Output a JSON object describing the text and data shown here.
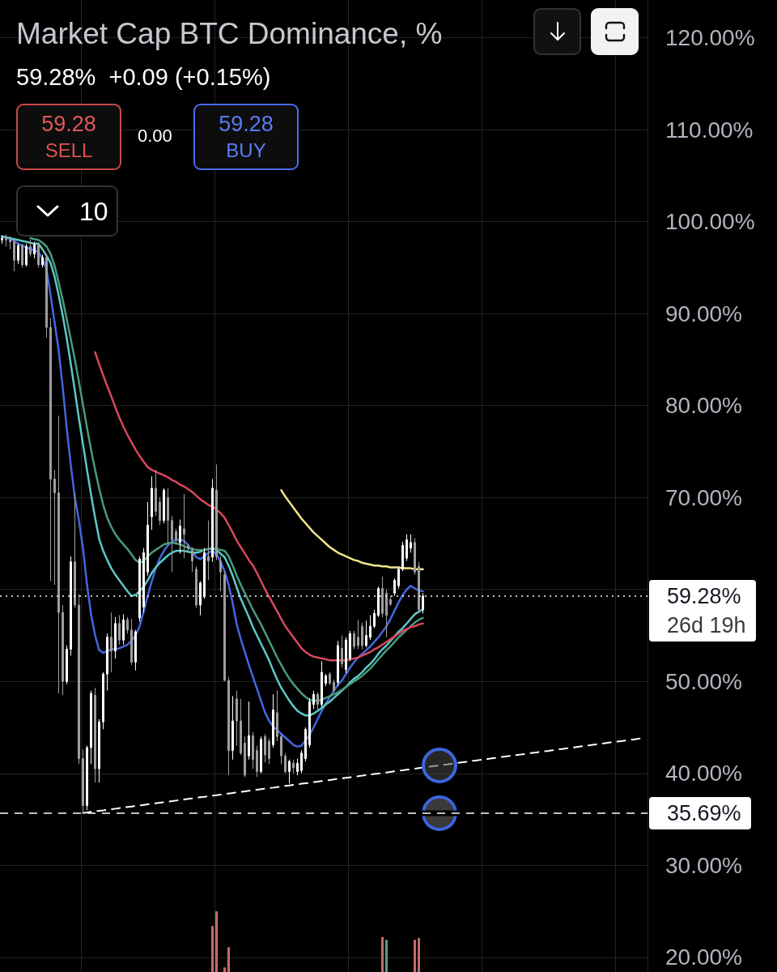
{
  "chart_data": {
    "type": "candlestick",
    "title": "Market Cap BTC Dominance, %",
    "subtitle": "59.28%  +0.09 (+0.15%)",
    "annotations": [
      "59.28",
      "SELL",
      "0.00",
      "59.28",
      "BUY",
      "10",
      "26d 19h"
    ],
    "categories": [
      null,
      null,
      null,
      null,
      null,
      null,
      null,
      null,
      null,
      null,
      null,
      null,
      null,
      null,
      null,
      null,
      null,
      null,
      null,
      null,
      null,
      null,
      null,
      null,
      null,
      null,
      null,
      null,
      null,
      null,
      null,
      null,
      null,
      null,
      null,
      null,
      null,
      null,
      null,
      null,
      null,
      null,
      null,
      null,
      null,
      null,
      null,
      null,
      null,
      null,
      null,
      null,
      null,
      null,
      null,
      null,
      null,
      null,
      null,
      null,
      null,
      null,
      null,
      null,
      null,
      null,
      null,
      null,
      null,
      null,
      null,
      null,
      null,
      null,
      null,
      null,
      null,
      null,
      null,
      null,
      null,
      null,
      null,
      null,
      null,
      null,
      null,
      null,
      null,
      null,
      null,
      null,
      null,
      null,
      null,
      null,
      null,
      null,
      null,
      null,
      null,
      null,
      null,
      null,
      null,
      null,
      null,
      null,
      null,
      null,
      null,
      null,
      null,
      null,
      null,
      null,
      null,
      null,
      null,
      null,
      null,
      null,
      null,
      null,
      null,
      null,
      null,
      null,
      null,
      null,
      null,
      null,
      null,
      null,
      null,
      null,
      null,
      null,
      null,
      null,
      null,
      null,
      null,
      null,
      null,
      null,
      null,
      null,
      null,
      null,
      null,
      null,
      null,
      null,
      null,
      null,
      null,
      null,
      null,
      null
    ],
    "ohlc": [
      [
        98.0,
        98.5,
        97.6,
        98.2
      ],
      [
        98.2,
        98.6,
        97.3,
        98.0
      ],
      [
        98.0,
        98.4,
        97.0,
        97.8
      ],
      [
        97.8,
        98.0,
        94.6,
        95.8
      ],
      [
        95.8,
        97.6,
        95.4,
        97.4
      ],
      [
        97.4,
        97.6,
        95.0,
        95.3
      ],
      [
        95.3,
        97.6,
        95.1,
        97.3
      ],
      [
        97.3,
        98.0,
        96.2,
        96.5
      ],
      [
        96.5,
        97.8,
        96.0,
        97.5
      ],
      [
        97.5,
        97.7,
        95.0,
        95.3
      ],
      [
        95.3,
        96.4,
        95.0,
        96.1
      ],
      [
        96.1,
        96.5,
        87.4,
        88.5
      ],
      [
        88.5,
        89.5,
        60.9,
        72.0
      ],
      [
        72.0,
        73.0,
        60.5,
        70.5
      ],
      [
        70.5,
        78.9,
        48.7,
        57.5
      ],
      [
        57.5,
        58.3,
        48.5,
        50.0
      ],
      [
        50.0,
        53.9,
        49.7,
        53.5
      ],
      [
        53.5,
        63.6,
        52.8,
        63.0
      ],
      [
        63.0,
        70.5,
        58.0,
        58.3
      ],
      [
        58.3,
        59.5,
        41.0,
        41.6
      ],
      [
        41.6,
        42.6,
        35.69,
        36.5
      ],
      [
        36.5,
        43.0,
        36.0,
        42.8
      ],
      [
        42.8,
        49.0,
        41.0,
        48.7
      ],
      [
        48.5,
        49.3,
        39.0,
        40.5
      ],
      [
        40.5,
        45.9,
        39.0,
        45.6
      ],
      [
        45.6,
        51.0,
        44.8,
        50.8
      ],
      [
        50.8,
        55.2,
        49.0,
        54.8
      ],
      [
        54.8,
        57.5,
        51.0,
        53.3
      ],
      [
        53.3,
        57.0,
        52.5,
        56.3
      ],
      [
        56.3,
        57.2,
        54.0,
        54.5
      ],
      [
        54.5,
        57.3,
        54.0,
        56.7
      ],
      [
        56.7,
        57.0,
        55.2,
        55.6
      ],
      [
        55.6,
        56.8,
        51.8,
        52.1
      ],
      [
        52.1,
        55.6,
        51.2,
        55.4
      ],
      [
        56.9,
        63.6,
        56.5,
        63.3
      ],
      [
        58.1,
        64.5,
        57.5,
        64.0
      ],
      [
        61.9,
        69.5,
        61.5,
        67.0
      ],
      [
        67.9,
        72.3,
        66.5,
        71.0
      ],
      [
        71.0,
        73.0,
        68.0,
        68.5
      ],
      [
        69.5,
        70.0,
        67.0,
        67.5
      ],
      [
        67.5,
        71.0,
        67.2,
        70.8
      ],
      [
        70.0,
        71.0,
        65.0,
        67.5
      ],
      [
        67.5,
        68.0,
        61.9,
        65.4
      ],
      [
        66.3,
        66.6,
        65.0,
        65.4
      ],
      [
        65.1,
        67.6,
        63.9,
        66.9
      ],
      [
        66.6,
        70.4,
        63.4,
        66.0
      ],
      [
        64.7,
        65.0,
        64.2,
        64.5
      ],
      [
        64.2,
        64.6,
        61.9,
        63.1
      ],
      [
        62.2,
        62.5,
        58.0,
        58.3
      ],
      [
        58.3,
        60.9,
        57.2,
        60.7
      ],
      [
        59.2,
        64.5,
        59.0,
        64.0
      ],
      [
        63.6,
        67.5,
        61.0,
        63.1
      ],
      [
        63.5,
        72.0,
        63.0,
        71.0
      ],
      [
        70.8,
        73.6,
        63.2,
        63.6
      ],
      [
        63.1,
        63.6,
        59.8,
        61.9
      ],
      [
        61.6,
        62.0,
        50.0,
        50.1
      ],
      [
        50.1,
        50.5,
        39.8,
        42.5
      ],
      [
        42.5,
        48.4,
        41.5,
        45.7
      ],
      [
        48.1,
        49.0,
        43.0,
        45.7
      ],
      [
        45.7,
        48.1,
        42.0,
        42.2
      ],
      [
        43.3,
        44.0,
        39.6,
        39.8
      ],
      [
        41.9,
        47.8,
        41.5,
        44.1
      ],
      [
        44.1,
        44.5,
        40.5,
        41.5
      ],
      [
        42.5,
        43.0,
        39.6,
        40.2
      ],
      [
        40.2,
        44.0,
        40.0,
        43.7
      ],
      [
        44.0,
        44.3,
        41.2,
        42.0
      ],
      [
        43.5,
        43.8,
        41.0,
        41.6
      ],
      [
        43.1,
        48.6,
        42.8,
        46.9
      ],
      [
        46.6,
        49.0,
        43.5,
        44.0
      ],
      [
        44.0,
        44.3,
        41.0,
        41.9
      ],
      [
        41.9,
        42.2,
        40.0,
        40.2
      ],
      [
        40.2,
        41.5,
        38.9,
        41.3
      ],
      [
        41.1,
        41.5,
        40.0,
        40.6
      ],
      [
        40.2,
        41.6,
        39.8,
        41.1
      ],
      [
        40.3,
        42.5,
        40.0,
        42.2
      ],
      [
        41.6,
        45.0,
        41.3,
        44.8
      ],
      [
        43.1,
        48.2,
        42.8,
        47.8
      ],
      [
        47.5,
        49.0,
        47.0,
        48.6
      ],
      [
        48.6,
        48.8,
        46.8,
        47.5
      ],
      [
        47.5,
        52.2,
        47.2,
        51.0
      ],
      [
        49.8,
        50.8,
        49.5,
        50.6
      ],
      [
        50.8,
        51.0,
        49.6,
        49.8
      ],
      [
        49.9,
        50.2,
        48.8,
        49.0
      ],
      [
        49.9,
        54.4,
        49.5,
        53.9
      ],
      [
        53.6,
        55.0,
        51.5,
        51.9
      ],
      [
        51.3,
        54.8,
        50.9,
        54.5
      ],
      [
        52.5,
        55.5,
        52.2,
        55.2
      ],
      [
        55.2,
        55.5,
        53.5,
        53.8
      ],
      [
        54.8,
        56.7,
        53.5,
        53.9
      ],
      [
        56.0,
        56.4,
        53.5,
        53.9
      ],
      [
        53.9,
        56.6,
        53.7,
        55.0
      ],
      [
        54.8,
        57.2,
        54.5,
        56.0
      ],
      [
        56.0,
        57.8,
        55.8,
        57.4
      ],
      [
        57.2,
        60.3,
        57.0,
        60.1
      ],
      [
        60.1,
        61.4,
        57.0,
        57.4
      ],
      [
        59.6,
        60.0,
        54.8,
        57.2
      ],
      [
        58.9,
        59.3,
        58.2,
        58.4
      ],
      [
        59.6,
        61.2,
        59.3,
        61.0
      ],
      [
        60.4,
        62.5,
        60.1,
        62.2
      ],
      [
        62.2,
        65.2,
        62.0,
        64.8
      ],
      [
        63.4,
        66.0,
        63.1,
        65.4
      ],
      [
        64.5,
        66.0,
        64.0,
        65.1
      ],
      [
        65.1,
        65.6,
        61.6,
        61.9
      ],
      [
        62.5,
        63.0,
        57.4,
        57.8
      ],
      [
        57.8,
        59.6,
        57.4,
        59.28
      ],
      null,
      null,
      null,
      null,
      null,
      null,
      null,
      null,
      null,
      null,
      null,
      null,
      null,
      null,
      null,
      null,
      null,
      null,
      null,
      null,
      null,
      null,
      null,
      null,
      null,
      null,
      null,
      null,
      null,
      null,
      null,
      null,
      null,
      null,
      null,
      null,
      null,
      null,
      null,
      null,
      null,
      null,
      null,
      null,
      null,
      null,
      null,
      null,
      null,
      null,
      null,
      null,
      null,
      null,
      null
    ],
    "colors": [
      "#ffffff",
      "#9e9e9e",
      "#9e9e9e",
      "#9e9e9e",
      "#ffffff",
      "#9e9e9e",
      "#ffffff",
      "#9e9e9e",
      "#ffffff",
      "#9e9e9e",
      "#ffffff",
      "#9e9e9e",
      "#9e9e9e",
      "#9e9e9e",
      "#9e9e9e",
      "#9e9e9e",
      "#ffffff",
      "#ffffff",
      "#9e9e9e",
      "#9e9e9e",
      "#9e9e9e",
      "#ffffff",
      "#ffffff",
      "#9e9e9e",
      "#ffffff",
      "#ffffff",
      "#ffffff",
      "#9e9e9e",
      "#ffffff",
      "#9e9e9e",
      "#ffffff",
      "#9e9e9e",
      "#9e9e9e",
      "#ffffff",
      "#ffffff",
      "#ffffff",
      "#ffffff",
      "#ffffff",
      "#9e9e9e",
      "#9e9e9e",
      "#ffffff",
      "#9e9e9e",
      "#9e9e9e",
      "#9e9e9e",
      "#ffffff",
      "#9e9e9e",
      "#9e9e9e",
      "#9e9e9e",
      "#9e9e9e",
      "#ffffff",
      "#ffffff",
      "#9e9e9e",
      "#ffffff",
      "#9e9e9e",
      "#9e9e9e",
      "#9e9e9e",
      "#9e9e9e",
      "#ffffff",
      "#9e9e9e",
      "#9e9e9e",
      "#9e9e9e",
      "#ffffff",
      "#9e9e9e",
      "#9e9e9e",
      "#ffffff",
      "#9e9e9e",
      "#9e9e9e",
      "#ffffff",
      "#9e9e9e",
      "#9e9e9e",
      "#9e9e9e",
      "#ffffff",
      "#9e9e9e",
      "#ffffff",
      "#ffffff",
      "#ffffff",
      "#ffffff",
      "#ffffff",
      "#9e9e9e",
      "#ffffff",
      "#ffffff",
      "#9e9e9e",
      "#9e9e9e",
      "#ffffff",
      "#9e9e9e",
      "#ffffff",
      "#ffffff",
      "#9e9e9e",
      "#9e9e9e",
      "#9e9e9e",
      "#ffffff",
      "#ffffff",
      "#ffffff",
      "#ffffff",
      "#9e9e9e",
      "#9e9e9e",
      "#9e9e9e",
      "#ffffff",
      "#ffffff",
      "#ffffff",
      "#ffffff",
      "#ffffff",
      "#9e9e9e",
      "#9e9e9e",
      "#ffffff",
      null,
      null,
      null,
      null,
      null,
      null,
      null,
      null,
      null,
      null,
      null,
      null,
      null,
      null,
      null,
      null,
      null,
      null,
      null,
      null,
      null,
      null,
      null,
      null,
      null,
      null,
      null,
      null,
      null,
      null,
      null,
      null,
      null,
      null,
      null,
      null,
      null,
      null,
      null,
      null,
      null,
      null,
      null,
      null,
      null,
      null,
      null,
      null,
      null,
      null,
      null,
      null,
      null,
      null,
      null
    ],
    "series": [
      {
        "type": "line",
        "color": "#4466e0",
        "values": [
          98.4,
          98.3,
          98.1,
          97.9,
          97.6,
          97.4,
          97.2,
          97.0,
          96.9,
          96.7,
          96.0,
          94.8,
          92.0,
          89.0,
          86.0,
          82.0,
          77.5,
          73.5,
          70.0,
          67.5,
          64.5,
          60.5,
          57.3,
          55.0,
          53.4,
          53.1,
          53.3,
          53.5,
          53.5,
          53.6,
          53.8,
          54.0,
          54.4,
          55.0,
          56.0,
          57.6,
          59.3,
          60.9,
          62.3,
          63.4,
          64.2,
          64.8,
          65.2,
          65.4,
          65.4,
          65.3,
          64.8,
          64.2,
          63.5,
          63.3,
          63.6,
          64.0,
          64.2,
          63.8,
          63.0,
          62.0,
          60.5,
          58.5,
          56.2,
          54.6,
          53.2,
          51.8,
          50.5,
          49.2,
          47.9,
          46.6,
          45.7,
          45.1,
          44.7,
          44.3,
          43.9,
          43.5,
          43.1,
          42.9,
          43.0,
          43.6,
          44.2,
          45.0,
          45.9,
          46.8,
          47.6,
          48.3,
          49.0,
          49.6,
          50.1,
          50.8,
          51.5,
          52.1,
          52.6,
          53.0,
          53.4,
          53.8,
          54.3,
          54.8,
          55.4,
          56.0,
          56.8,
          57.7,
          58.6,
          59.4,
          60.0,
          60.4,
          60.1,
          59.9,
          59.8,
          null,
          null,
          null,
          null,
          null,
          null,
          null,
          null,
          null,
          null,
          null,
          null,
          null,
          null,
          null,
          null,
          null,
          null,
          null,
          null,
          null,
          null,
          null,
          null,
          null,
          null,
          null,
          null,
          null,
          null,
          null,
          null,
          null,
          null,
          null,
          null,
          null,
          null,
          null,
          null,
          null,
          null,
          null,
          null,
          null,
          null,
          null,
          null,
          null,
          null,
          null,
          null,
          null,
          null,
          null
        ]
      },
      {
        "type": "line",
        "color": "#5cc8c8",
        "values": [
          98.4,
          98.3,
          98.2,
          98.1,
          98.0,
          97.9,
          97.8,
          97.7,
          97.6,
          97.6,
          97.0,
          96.3,
          95.5,
          94.0,
          92.0,
          89.8,
          87.3,
          84.5,
          81.6,
          78.6,
          75.8,
          73.0,
          70.3,
          67.8,
          65.5,
          64.2,
          63.2,
          62.3,
          61.6,
          61.0,
          60.4,
          59.8,
          59.3,
          59.4,
          59.8,
          60.3,
          61.0,
          61.8,
          62.4,
          62.9,
          63.3,
          63.7,
          64.0,
          64.2,
          64.2,
          64.2,
          64.1,
          64.0,
          64.0,
          64.1,
          64.3,
          64.4,
          64.5,
          64.3,
          63.9,
          63.5,
          62.6,
          61.5,
          60.2,
          59.0,
          58.0,
          57.0,
          55.9,
          55.0,
          54.1,
          53.2,
          52.3,
          51.2,
          50.2,
          49.3,
          48.6,
          47.9,
          47.3,
          46.8,
          46.5,
          46.3,
          46.3,
          46.5,
          46.8,
          47.1,
          47.5,
          47.8,
          48.2,
          48.6,
          49.0,
          49.4,
          49.9,
          50.3,
          50.6,
          51.0,
          51.5,
          51.9,
          52.4,
          53.0,
          53.5,
          53.9,
          54.4,
          54.9,
          55.4,
          55.8,
          56.3,
          56.8,
          57.3,
          57.6,
          57.8,
          null,
          null,
          null,
          null,
          null,
          null,
          null,
          null,
          null,
          null,
          null,
          null,
          null,
          null,
          null,
          null,
          null,
          null,
          null,
          null,
          null,
          null,
          null,
          null,
          null,
          null,
          null,
          null,
          null,
          null,
          null,
          null,
          null,
          null,
          null,
          null,
          null,
          null,
          null,
          null,
          null,
          null,
          null,
          null,
          null,
          null,
          null,
          null,
          null,
          null,
          null,
          null,
          null,
          null,
          null
        ]
      },
      {
        "type": "line",
        "color": "#4a9a7c",
        "values": [
          null,
          null,
          null,
          null,
          null,
          null,
          null,
          98.2,
          98.1,
          98.0,
          97.7,
          97.3,
          96.5,
          95.2,
          93.4,
          91.5,
          89.4,
          87.2,
          85.0,
          82.6,
          80.1,
          77.6,
          75.2,
          73.0,
          71.0,
          69.2,
          67.8,
          66.8,
          66.0,
          65.4,
          64.9,
          64.4,
          63.8,
          63.2,
          62.9,
          63.1,
          63.6,
          64.0,
          64.3,
          64.6,
          64.9,
          65.0,
          65.1,
          65.0,
          64.9,
          64.7,
          64.5,
          64.4,
          64.3,
          64.3,
          64.3,
          64.4,
          64.4,
          64.4,
          64.3,
          64.2,
          63.6,
          62.6,
          61.5,
          60.5,
          59.6,
          58.7,
          57.8,
          57.0,
          56.2,
          55.3,
          54.4,
          53.5,
          52.6,
          51.8,
          51.0,
          50.3,
          49.7,
          49.2,
          48.7,
          48.3,
          48.0,
          47.9,
          47.9,
          48.0,
          48.2,
          48.4,
          48.6,
          48.8,
          49.1,
          49.4,
          49.7,
          50.0,
          50.3,
          50.6,
          51.0,
          51.4,
          51.9,
          52.4,
          52.9,
          53.4,
          53.8,
          54.3,
          54.8,
          55.2,
          55.6,
          56.0,
          56.4,
          56.7,
          56.9,
          null,
          null,
          null,
          null,
          null,
          null,
          null,
          null,
          null,
          null,
          null,
          null,
          null,
          null,
          null,
          null,
          null,
          null,
          null,
          null,
          null,
          null,
          null,
          null,
          null,
          null,
          null,
          null,
          null,
          null,
          null,
          null,
          null,
          null,
          null,
          null,
          null,
          null,
          null,
          null,
          null,
          null,
          null,
          null,
          null,
          null,
          null,
          null,
          null,
          null,
          null,
          null,
          null,
          null,
          null
        ]
      },
      {
        "type": "line",
        "color": "#d9475c",
        "values": [
          null,
          null,
          null,
          null,
          null,
          null,
          null,
          null,
          null,
          null,
          null,
          null,
          null,
          null,
          null,
          null,
          null,
          null,
          null,
          null,
          null,
          null,
          null,
          85.8,
          84.5,
          83.3,
          82.1,
          81.0,
          79.8,
          78.7,
          77.7,
          76.8,
          76.0,
          75.2,
          74.5,
          73.9,
          73.3,
          73.0,
          72.8,
          72.6,
          72.4,
          72.2,
          71.9,
          71.7,
          71.4,
          71.2,
          70.9,
          70.6,
          70.2,
          69.8,
          69.5,
          69.2,
          69.0,
          68.7,
          68.3,
          67.8,
          67.0,
          66.2,
          65.3,
          64.6,
          63.9,
          63.2,
          62.6,
          61.8,
          60.9,
          60.0,
          59.2,
          58.4,
          57.6,
          56.8,
          56.0,
          55.4,
          54.8,
          54.2,
          53.6,
          53.2,
          52.9,
          52.7,
          52.6,
          52.5,
          52.4,
          52.3,
          52.3,
          52.3,
          52.3,
          52.3,
          52.4,
          52.5,
          52.6,
          52.8,
          53.0,
          53.2,
          53.5,
          53.7,
          54.0,
          54.3,
          54.6,
          54.9,
          55.2,
          55.5,
          55.7,
          55.9,
          56.0,
          56.2,
          56.3,
          null,
          null,
          null,
          null,
          null,
          null,
          null,
          null,
          null,
          null,
          null,
          null,
          null,
          null,
          null,
          null,
          null,
          null,
          null,
          null,
          null,
          null,
          null,
          null,
          null,
          null,
          null,
          null,
          null,
          null,
          null,
          null,
          null,
          null,
          null,
          null,
          null,
          null,
          null,
          null,
          null,
          null,
          null,
          null,
          null,
          null,
          null,
          null,
          null,
          null,
          null,
          null,
          null,
          null,
          null
        ]
      },
      {
        "type": "line",
        "color": "#f2e48b",
        "values": [
          null,
          null,
          null,
          null,
          null,
          null,
          null,
          null,
          null,
          null,
          null,
          null,
          null,
          null,
          null,
          null,
          null,
          null,
          null,
          null,
          null,
          null,
          null,
          null,
          null,
          null,
          null,
          null,
          null,
          null,
          null,
          null,
          null,
          null,
          null,
          null,
          null,
          null,
          null,
          null,
          null,
          null,
          null,
          null,
          null,
          null,
          null,
          null,
          null,
          null,
          null,
          null,
          null,
          null,
          null,
          null,
          null,
          null,
          null,
          null,
          null,
          null,
          null,
          null,
          null,
          null,
          null,
          null,
          null,
          70.8,
          70.1,
          69.5,
          68.9,
          68.3,
          67.7,
          67.2,
          66.7,
          66.2,
          65.8,
          65.4,
          65.0,
          64.6,
          64.3,
          64.0,
          63.8,
          63.6,
          63.4,
          63.2,
          63.1,
          62.9,
          62.8,
          62.7,
          62.6,
          62.6,
          62.5,
          62.5,
          62.4,
          62.4,
          62.4,
          62.3,
          62.3,
          62.3,
          62.2,
          62.2,
          62.2,
          null,
          null,
          null,
          null,
          null,
          null,
          null,
          null,
          null,
          null,
          null,
          null,
          null,
          null,
          null,
          null,
          null,
          null,
          null,
          null,
          null,
          null,
          null,
          null,
          null,
          null,
          null,
          null,
          null,
          null,
          null,
          null,
          null,
          null,
          null,
          null,
          null,
          null,
          null,
          null,
          null,
          null,
          null,
          null,
          null,
          null,
          null,
          null,
          null,
          null,
          null,
          null,
          null,
          null,
          null
        ]
      },
      {
        "type": "line",
        "color": "#ffffff",
        "line_style": "dashed",
        "values": [
          null,
          null,
          null,
          null,
          null,
          null,
          null,
          null,
          null,
          null,
          null,
          null,
          null,
          null,
          null,
          null,
          null,
          null,
          null,
          null,
          35.69,
          35.75,
          35.81,
          35.87,
          35.93,
          35.98,
          36.04,
          36.1,
          36.16,
          36.22,
          36.28,
          36.34,
          36.4,
          36.45,
          36.51,
          36.57,
          36.63,
          36.69,
          36.75,
          36.81,
          36.87,
          36.93,
          36.98,
          37.04,
          37.1,
          37.16,
          37.22,
          37.28,
          37.34,
          37.4,
          37.45,
          37.51,
          37.57,
          37.63,
          37.69,
          37.75,
          37.81,
          37.87,
          37.93,
          37.98,
          38.04,
          38.1,
          38.16,
          38.22,
          38.28,
          38.34,
          38.4,
          38.45,
          38.51,
          38.57,
          38.63,
          38.69,
          38.75,
          38.81,
          38.87,
          38.93,
          38.98,
          39.04,
          39.1,
          39.16,
          39.22,
          39.28,
          39.34,
          39.4,
          39.45,
          39.51,
          39.57,
          39.63,
          39.69,
          39.75,
          39.81,
          39.87,
          39.93,
          39.98,
          40.04,
          40.1,
          40.16,
          40.22,
          40.28,
          40.34,
          40.4,
          40.45,
          40.51,
          40.57,
          40.63,
          40.69,
          40.75,
          40.81,
          40.87,
          40.93,
          40.98,
          41.04,
          41.1,
          41.16,
          41.22,
          41.28,
          41.34,
          41.4,
          41.45,
          41.51,
          41.57,
          41.63,
          41.69,
          41.75,
          41.81,
          41.87,
          41.93,
          41.98,
          42.04,
          42.1,
          42.16,
          42.22,
          42.28,
          42.34,
          42.4,
          42.45,
          42.51,
          42.57,
          42.63,
          42.69,
          42.75,
          42.81,
          42.87,
          42.93,
          42.98,
          43.04,
          43.1,
          43.16,
          43.22,
          43.28,
          43.34,
          43.4,
          43.45,
          43.51,
          43.57,
          43.63,
          43.69,
          43.75,
          43.81,
          null
        ]
      },
      {
        "type": "bar",
        "color": "#c46a68",
        "values": [
          null,
          null,
          null,
          null,
          null,
          null,
          null,
          null,
          null,
          null,
          null,
          null,
          null,
          null,
          null,
          null,
          null,
          null,
          null,
          null,
          null,
          null,
          null,
          null,
          null,
          null,
          null,
          null,
          null,
          null,
          null,
          null,
          null,
          null,
          null,
          null,
          null,
          null,
          null,
          null,
          null,
          null,
          null,
          null,
          null,
          null,
          null,
          null,
          null,
          null,
          null,
          null,
          23.4,
          25.0,
          null,
          18.9,
          21.1,
          null,
          null,
          null,
          null,
          null,
          null,
          null,
          null,
          null,
          null,
          null,
          null,
          null,
          null,
          null,
          null,
          null,
          null,
          null,
          null,
          null,
          null,
          null,
          null,
          null,
          null,
          null,
          null,
          null,
          null,
          null,
          null,
          null,
          null,
          null,
          null,
          null,
          22.2,
          null,
          null,
          null,
          null,
          null,
          null,
          null,
          21.9,
          22.1,
          null,
          null,
          null,
          null,
          null,
          null,
          null,
          null,
          null,
          null,
          null,
          null,
          null,
          null,
          null,
          null,
          null,
          null,
          null,
          null,
          null,
          null,
          null,
          null,
          null,
          null,
          null,
          null,
          null,
          null,
          null,
          null,
          null,
          null,
          null,
          null,
          null,
          null,
          null,
          null,
          null,
          null,
          null,
          null,
          null,
          null,
          null,
          null,
          null,
          null,
          null,
          null,
          null,
          null,
          null,
          null
        ]
      },
      {
        "type": "bar",
        "color": "#5a9890",
        "values": [
          null,
          null,
          null,
          null,
          null,
          null,
          null,
          null,
          null,
          null,
          null,
          null,
          null,
          null,
          null,
          null,
          null,
          null,
          null,
          null,
          null,
          null,
          null,
          null,
          null,
          null,
          null,
          null,
          null,
          null,
          null,
          null,
          null,
          null,
          null,
          null,
          null,
          null,
          null,
          null,
          null,
          null,
          null,
          null,
          null,
          null,
          null,
          null,
          null,
          null,
          null,
          null,
          null,
          null,
          null,
          null,
          null,
          null,
          null,
          null,
          null,
          null,
          null,
          null,
          null,
          null,
          null,
          null,
          null,
          null,
          null,
          null,
          null,
          null,
          null,
          null,
          null,
          null,
          null,
          null,
          null,
          null,
          null,
          null,
          null,
          null,
          null,
          null,
          null,
          null,
          null,
          null,
          null,
          null,
          null,
          21.9,
          null,
          null,
          null,
          null,
          null,
          null,
          null,
          null,
          null,
          null,
          null,
          null,
          null,
          null,
          null,
          null,
          null,
          null,
          null,
          null,
          null,
          null,
          null,
          null,
          null,
          null,
          null,
          null,
          null,
          null,
          null,
          null,
          null,
          null,
          null,
          null,
          null,
          null,
          null,
          null,
          null,
          null,
          null,
          null,
          null,
          null,
          null,
          null,
          null,
          null,
          null,
          null,
          null,
          null,
          null,
          null,
          null,
          null,
          null,
          null,
          null,
          null,
          null,
          null
        ]
      }
    ],
    "ylim": [
      18.4,
      124.1
    ],
    "yticks": [
      {
        "value": 20,
        "label": "20.00%"
      },
      {
        "value": 30,
        "label": "30.00%"
      },
      {
        "value": 40,
        "label": "40.00%"
      },
      {
        "value": 50,
        "label": "50.00%"
      },
      {
        "value": 60,
        "label": null
      },
      {
        "value": 70,
        "label": "70.00%"
      },
      {
        "value": 80,
        "label": "80.00%"
      },
      {
        "value": 90,
        "label": "90.00%"
      },
      {
        "value": 100,
        "label": "100.00%"
      },
      {
        "value": 110,
        "label": "110.00%"
      },
      {
        "value": 120,
        "label": "120.00%"
      }
    ],
    "ref_lines": [
      {
        "axis": "y",
        "value": 59.28,
        "label": "59.28%",
        "color": "#ffffff",
        "line_style": "dotted"
      },
      {
        "axis": "y",
        "value": 35.69,
        "label": "35.69%",
        "color": "#ffffff",
        "line_style": "dashed"
      }
    ],
    "grid": true,
    "tick_labels": "y",
    "marker": "none"
  }
}
